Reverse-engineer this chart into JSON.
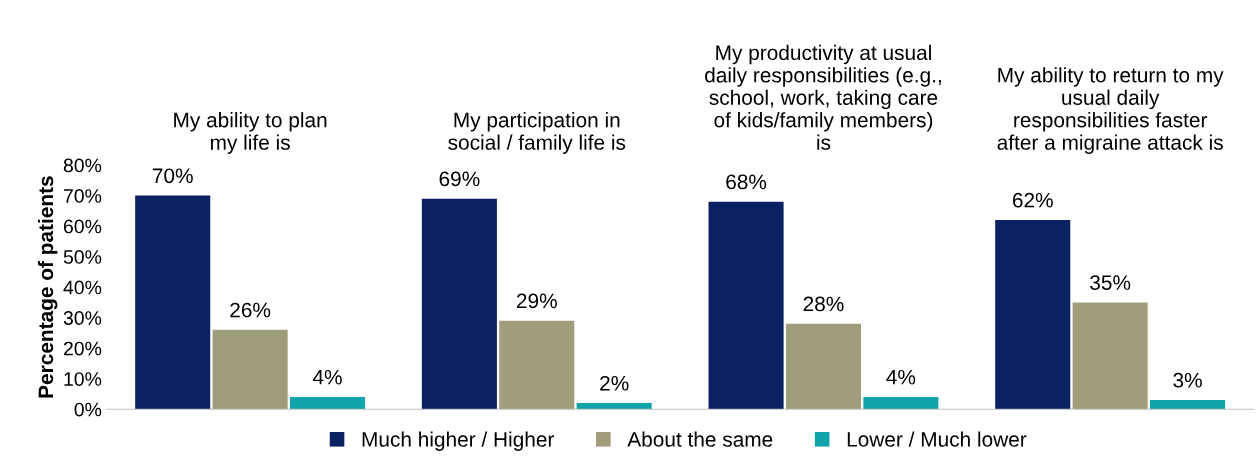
{
  "chart_data": {
    "type": "bar",
    "ylabel": "Percentage of patients",
    "categories": [
      "My ability to plan\nmy life is",
      "My participation in\nsocial / family life is",
      "My productivity at usual\ndaily responsibilities (e.g.,\nschool, work, taking care\nof kids/family members)\nis",
      "My ability to return to my\nusual daily\nresponsibilities faster\nafter a migraine attack is"
    ],
    "ylim": [
      0,
      80
    ],
    "yticks": [
      {
        "value": 0,
        "label": "0%"
      },
      {
        "value": 10,
        "label": "10%"
      },
      {
        "value": 20,
        "label": "20%"
      },
      {
        "value": 30,
        "label": "30%"
      },
      {
        "value": 40,
        "label": "40%"
      },
      {
        "value": 50,
        "label": "50%"
      },
      {
        "value": 60,
        "label": "60%"
      },
      {
        "value": 70,
        "label": "70%"
      },
      {
        "value": 80,
        "label": "80%"
      }
    ],
    "legend": "bottom",
    "grid": false,
    "series": [
      {
        "name": "Much higher / Higher",
        "color": "#0b2161",
        "values": [
          70,
          69,
          68,
          62
        ],
        "value_labels": [
          "70%",
          "69%",
          "68%",
          "62%"
        ]
      },
      {
        "name": "About the same",
        "color": "#a09d7c",
        "values": [
          26,
          29,
          28,
          35
        ],
        "value_labels": [
          "26%",
          "29%",
          "28%",
          "35%"
        ]
      },
      {
        "name": "Lower / Much lower",
        "color": "#0fa5a8",
        "values": [
          4,
          2,
          4,
          3
        ],
        "value_labels": [
          "4%",
          "2%",
          "4%",
          "3%"
        ]
      }
    ]
  }
}
